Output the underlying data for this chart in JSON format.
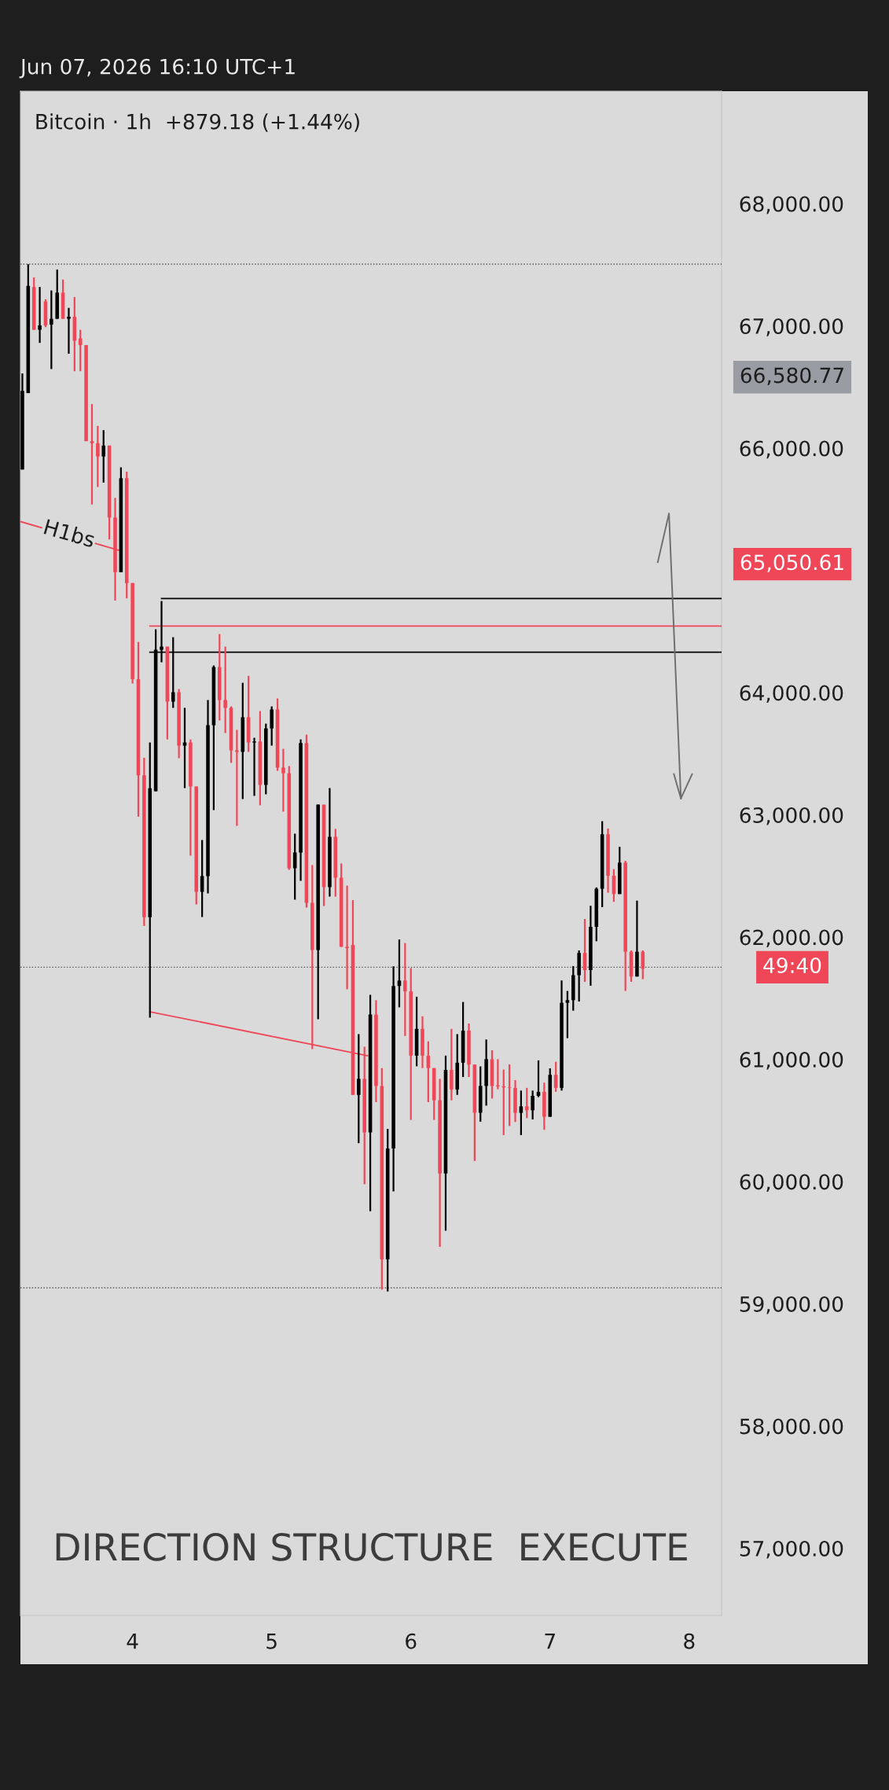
{
  "chart_data": {
    "type": "candlestick",
    "title": "Bitcoin · 1h  +879.18 (+1.44%)",
    "subtitle": "Jun 07, 2026 16:10 UTC+1",
    "x": [
      "2026-06-03T05:00",
      "2026-06-03T06:00",
      "2026-06-03T07:00",
      "2026-06-03T08:00",
      "2026-06-03T09:00",
      "2026-06-03T10:00",
      "2026-06-03T11:00",
      "2026-06-03T12:00",
      "2026-06-03T13:00",
      "2026-06-03T14:00",
      "2026-06-03T15:00",
      "2026-06-03T16:00",
      "2026-06-03T17:00",
      "2026-06-03T18:00",
      "2026-06-03T19:00",
      "2026-06-03T20:00",
      "2026-06-03T21:00",
      "2026-06-03T22:00",
      "2026-06-03T23:00",
      "2026-06-04T00:00",
      "2026-06-04T01:00",
      "2026-06-04T02:00",
      "2026-06-04T03:00",
      "2026-06-04T04:00",
      "2026-06-04T05:00",
      "2026-06-04T06:00",
      "2026-06-04T07:00",
      "2026-06-04T08:00",
      "2026-06-04T09:00",
      "2026-06-04T10:00",
      "2026-06-04T11:00",
      "2026-06-04T12:00",
      "2026-06-04T13:00",
      "2026-06-04T14:00",
      "2026-06-04T15:00",
      "2026-06-04T16:00",
      "2026-06-04T17:00",
      "2026-06-04T18:00",
      "2026-06-04T19:00",
      "2026-06-04T20:00",
      "2026-06-04T21:00",
      "2026-06-04T22:00",
      "2026-06-04T23:00",
      "2026-06-05T00:00",
      "2026-06-05T01:00",
      "2026-06-05T02:00",
      "2026-06-05T03:00",
      "2026-06-05T04:00",
      "2026-06-05T05:00",
      "2026-06-05T06:00",
      "2026-06-05T07:00",
      "2026-06-05T08:00",
      "2026-06-05T09:00",
      "2026-06-05T10:00",
      "2026-06-05T11:00",
      "2026-06-05T12:00",
      "2026-06-05T13:00",
      "2026-06-05T14:00",
      "2026-06-05T15:00",
      "2026-06-05T16:00",
      "2026-06-05T17:00",
      "2026-06-05T18:00",
      "2026-06-05T19:00",
      "2026-06-05T20:00",
      "2026-06-05T21:00",
      "2026-06-05T22:00",
      "2026-06-05T23:00",
      "2026-06-06T00:00",
      "2026-06-06T01:00",
      "2026-06-06T02:00",
      "2026-06-06T03:00",
      "2026-06-06T04:00",
      "2026-06-06T05:00",
      "2026-06-06T06:00",
      "2026-06-06T07:00",
      "2026-06-06T08:00",
      "2026-06-06T09:00",
      "2026-06-06T10:00",
      "2026-06-06T11:00",
      "2026-06-06T12:00",
      "2026-06-06T13:00",
      "2026-06-06T14:00",
      "2026-06-06T15:00",
      "2026-06-06T16:00",
      "2026-06-06T17:00",
      "2026-06-06T18:00",
      "2026-06-06T19:00",
      "2026-06-06T20:00",
      "2026-06-06T21:00",
      "2026-06-06T22:00",
      "2026-06-06T23:00",
      "2026-06-07T00:00",
      "2026-06-07T01:00",
      "2026-06-07T02:00",
      "2026-06-07T03:00",
      "2026-06-07T04:00",
      "2026-06-07T05:00",
      "2026-06-07T06:00",
      "2026-06-07T07:00",
      "2026-06-07T08:00",
      "2026-06-07T09:00",
      "2026-06-07T10:00",
      "2026-06-07T11:00",
      "2026-06-07T12:00",
      "2026-06-07T13:00",
      "2026-06-07T14:00",
      "2026-06-07T15:00",
      "2026-06-07T16:00"
    ],
    "ohlc": [
      [
        65825,
        66611,
        65825,
        66468
      ],
      [
        66450,
        67504,
        66450,
        67326
      ],
      [
        67318,
        67397,
        66968,
        66968
      ],
      [
        66968,
        67318,
        66861,
        67004
      ],
      [
        67200,
        67218,
        66990,
        67004
      ],
      [
        67011,
        67290,
        66647,
        67058
      ],
      [
        67058,
        67461,
        67058,
        67272
      ],
      [
        67272,
        67379,
        67058,
        67058
      ],
      [
        67058,
        67147,
        66772,
        67075
      ],
      [
        67075,
        67236,
        66629,
        66879
      ],
      [
        66897,
        66968,
        66629,
        66843
      ],
      [
        66843,
        66843,
        66057,
        66057
      ],
      [
        66057,
        66361,
        65539,
        66040
      ],
      [
        66040,
        66182,
        65682,
        65932
      ],
      [
        65932,
        66147,
        65718,
        66021
      ],
      [
        66021,
        66021,
        65253,
        65432
      ],
      [
        65432,
        65593,
        64753,
        64985
      ],
      [
        64985,
        65843,
        64985,
        65754
      ],
      [
        65754,
        65807,
        64771,
        64896
      ],
      [
        64896,
        64896,
        64074,
        64110
      ],
      [
        64110,
        64414,
        62985,
        63324
      ],
      [
        63324,
        63467,
        62091,
        62163
      ],
      [
        62163,
        63592,
        61341,
        63217
      ],
      [
        63193,
        64518,
        63193,
        64350
      ],
      [
        64350,
        64749,
        64248,
        64376
      ],
      [
        64376,
        64376,
        63617,
        63926
      ],
      [
        63926,
        64453,
        63875,
        64003
      ],
      [
        64003,
        64029,
        63463,
        63566
      ],
      [
        63566,
        63875,
        63219,
        63592
      ],
      [
        63592,
        63617,
        62666,
        63232
      ],
      [
        63232,
        63232,
        62267,
        62370
      ],
      [
        62370,
        62794,
        62164,
        62499
      ],
      [
        62499,
        63939,
        62357,
        63733
      ],
      [
        63733,
        64222,
        63039,
        64209
      ],
      [
        64209,
        64479,
        63772,
        63939
      ],
      [
        63939,
        64376,
        63669,
        63875
      ],
      [
        63875,
        63887,
        63425,
        63527
      ],
      [
        63527,
        63695,
        62910,
        63515
      ],
      [
        63515,
        64080,
        63129,
        63798
      ],
      [
        63798,
        64137,
        63515,
        63592
      ],
      [
        63592,
        63630,
        63155,
        63600
      ],
      [
        63600,
        63849,
        63078,
        63245
      ],
      [
        63245,
        63746,
        63168,
        63707
      ],
      [
        63707,
        63887,
        63566,
        63862
      ],
      [
        63862,
        63952,
        63360,
        63386
      ],
      [
        63386,
        63540,
        63026,
        63340
      ],
      [
        63340,
        63399,
        62550,
        62563
      ],
      [
        62563,
        62846,
        62306,
        62692
      ],
      [
        62692,
        63617,
        62460,
        63587
      ],
      [
        63587,
        63656,
        62241,
        62280
      ],
      [
        62280,
        62589,
        61084,
        61894
      ],
      [
        61894,
        63083,
        61328,
        63083
      ],
      [
        63083,
        63083,
        62254,
        62409
      ],
      [
        62409,
        63219,
        62331,
        62820
      ],
      [
        62820,
        62885,
        62331,
        62486
      ],
      [
        62486,
        62602,
        61920,
        61920
      ],
      [
        61920,
        62421,
        61573,
        61910
      ],
      [
        61936,
        62302,
        60709,
        60709
      ],
      [
        60709,
        61206,
        60314,
        60840
      ],
      [
        60840,
        61103,
        59978,
        60402
      ],
      [
        60402,
        61527,
        59758,
        61366
      ],
      [
        61366,
        61483,
        60650,
        60782
      ],
      [
        60782,
        60928,
        59116,
        59364
      ],
      [
        59364,
        60431,
        59101,
        60270
      ],
      [
        60270,
        61761,
        59919,
        61600
      ],
      [
        61600,
        61980,
        61425,
        61644
      ],
      [
        61644,
        61951,
        61191,
        61556
      ],
      [
        61556,
        61746,
        60504,
        61030
      ],
      [
        61030,
        61512,
        60943,
        61249
      ],
      [
        61249,
        61352,
        60928,
        61030
      ],
      [
        61030,
        61147,
        60650,
        60928
      ],
      [
        60928,
        60928,
        60504,
        60665
      ],
      [
        60665,
        60840,
        59466,
        60066
      ],
      [
        60066,
        61030,
        59598,
        60913
      ],
      [
        60913,
        61249,
        60665,
        60753
      ],
      [
        60753,
        61206,
        60709,
        60972
      ],
      [
        60972,
        61469,
        60855,
        61235
      ],
      [
        61235,
        61293,
        60855,
        60957
      ],
      [
        60957,
        60957,
        60168,
        60563
      ],
      [
        60563,
        60942,
        60490,
        60782
      ],
      [
        60782,
        61162,
        60621,
        61001
      ],
      [
        61001,
        61074,
        60679,
        60782
      ],
      [
        60787,
        61001,
        60755,
        60779
      ],
      [
        60779,
        60916,
        60380,
        60770
      ],
      [
        60770,
        60959,
        60455,
        60766
      ],
      [
        60766,
        60830,
        60487,
        60562
      ],
      [
        60562,
        60744,
        60380,
        60615
      ],
      [
        60615,
        60766,
        60519,
        60583
      ],
      [
        60583,
        60744,
        60508,
        60701
      ],
      [
        60701,
        60991,
        60691,
        60734
      ],
      [
        60734,
        60809,
        60423,
        60530
      ],
      [
        60530,
        60926,
        60530,
        60873
      ],
      [
        60873,
        60980,
        60734,
        60766
      ],
      [
        60766,
        61645,
        60744,
        61462
      ],
      [
        61462,
        61559,
        61173,
        61484
      ],
      [
        61484,
        61763,
        61398,
        61688
      ],
      [
        61688,
        61891,
        61473,
        61870
      ],
      [
        61870,
        62148,
        61634,
        61730
      ],
      [
        61730,
        62256,
        61602,
        62084
      ],
      [
        62084,
        62406,
        61966,
        62395
      ],
      [
        62395,
        62948,
        62245,
        62841
      ],
      [
        62841,
        62888,
        62363,
        62502
      ],
      [
        62502,
        62556,
        62288,
        62352
      ],
      [
        62352,
        62738,
        62352,
        62609
      ],
      [
        62609,
        62624,
        61559,
        61880
      ],
      [
        61880,
        61891,
        61634,
        61677
      ],
      [
        61677,
        62298,
        61677,
        61880
      ],
      [
        61880,
        61891,
        61655,
        61741
      ]
    ],
    "colors": [
      "#000000",
      "#000000",
      "#ef4757",
      "#000000",
      "#ef4757",
      "#000000",
      "#000000",
      "#ef4757",
      "#000000",
      "#ef4757",
      "#ef4757",
      "#ef4757",
      "#ef4757",
      "#ef4757",
      "#000000",
      "#ef4757",
      "#ef4757",
      "#000000",
      "#ef4757",
      "#ef4757",
      "#ef4757",
      "#ef4757",
      "#000000",
      "#000000",
      "#000000",
      "#ef4757",
      "#000000",
      "#ef4757",
      "#000000",
      "#ef4757",
      "#ef4757",
      "#000000",
      "#000000",
      "#000000",
      "#ef4757",
      "#ef4757",
      "#ef4757",
      "#ef4757",
      "#000000",
      "#ef4757",
      "#000000",
      "#ef4757",
      "#000000",
      "#000000",
      "#ef4757",
      "#ef4757",
      "#ef4757",
      "#000000",
      "#000000",
      "#ef4757",
      "#ef4757",
      "#000000",
      "#ef4757",
      "#000000",
      "#ef4757",
      "#ef4757",
      "#ef4757",
      "#ef4757",
      "#000000",
      "#ef4757",
      "#000000",
      "#ef4757",
      "#ef4757",
      "#000000",
      "#000000",
      "#000000",
      "#ef4757",
      "#ef4757",
      "#000000",
      "#ef4757",
      "#ef4757",
      "#ef4757",
      "#ef4757",
      "#000000",
      "#ef4757",
      "#000000",
      "#000000",
      "#ef4757",
      "#ef4757",
      "#000000",
      "#000000",
      "#ef4757",
      "#ef4757",
      "#ef4757",
      "#ef4757",
      "#ef4757",
      "#000000",
      "#ef4757",
      "#000000",
      "#000000",
      "#ef4757",
      "#000000",
      "#ef4757",
      "#000000",
      "#000000",
      "#000000",
      "#000000",
      "#ef4757",
      "#000000",
      "#000000",
      "#000000",
      "#ef4757",
      "#ef4757",
      "#000000",
      "#ef4757",
      "#ef4757",
      "#000000",
      "#ef4757"
    ],
    "series": [
      {
        "type": "line",
        "color": "#000000",
        "x": [
          "2026-06-04T05:00",
          "2026-06-08T05:35"
        ],
        "values": [
          64769,
          64769
        ]
      },
      {
        "type": "line",
        "color": "#ef4757",
        "x": [
          "2026-06-04T03:00",
          "2026-06-08T05:35"
        ],
        "values": [
          64545,
          64545
        ]
      },
      {
        "type": "line",
        "color": "#000000",
        "x": [
          "2026-06-04T03:00",
          "2026-06-08T05:35"
        ],
        "values": [
          64330,
          64330
        ]
      },
      {
        "type": "line",
        "color": "#ef4757",
        "x": [
          "2026-06-04T03:00",
          "2026-06-05T16:30"
        ],
        "values": [
          61389,
          61030
        ]
      },
      {
        "type": "line",
        "color": "#ef4757",
        "x": [
          "2026-06-03T04:40",
          "2026-06-03T21:35"
        ],
        "values": [
          65399,
          65165
        ]
      }
    ],
    "ref_lines": [
      {
        "axis": "y",
        "value": 67505,
        "color": "#555555",
        "line_style": "dotted"
      },
      {
        "axis": "y",
        "value": 59130,
        "color": "#555555",
        "line_style": "dotted"
      },
      {
        "axis": "y",
        "value": 61753,
        "color": "#555555",
        "line_style": "dotted"
      }
    ],
    "annotations": [
      {
        "text": "H1bs",
        "x": "2026-06-03T13:00",
        "y": 65290
      },
      "66,580.77",
      "65,050.61",
      "49:40",
      "DIRECTION STRUCTURE  EXECUTE"
    ],
    "xlim": [
      "2026-06-03T04:40",
      "2026-06-08T05:35"
    ],
    "xticks": [
      {
        "value": "2026-06-04",
        "label": "4"
      },
      {
        "value": "2026-06-05",
        "label": "5"
      },
      {
        "value": "2026-06-06",
        "label": "6"
      },
      {
        "value": "2026-06-07",
        "label": "7"
      },
      {
        "value": "2026-06-08",
        "label": "8"
      }
    ],
    "ylim": [
      56450,
      68920
    ],
    "yticks": [
      {
        "value": 57000,
        "label": "57,000.00"
      },
      {
        "value": 58000,
        "label": "58,000.00"
      },
      {
        "value": 59000,
        "label": "59,000.00"
      },
      {
        "value": 60000,
        "label": "60,000.00"
      },
      {
        "value": 61000,
        "label": "61,000.00"
      },
      {
        "value": 62000,
        "label": "62,000.00"
      },
      {
        "value": 63000,
        "label": "63,000.00"
      },
      {
        "value": 64000,
        "label": "64,000.00"
      },
      {
        "value": 66000,
        "label": "66,000.00"
      },
      {
        "value": 67000,
        "label": "67,000.00"
      },
      {
        "value": 68000,
        "label": "68,000.00"
      }
    ],
    "grid": false,
    "legend": false
  }
}
